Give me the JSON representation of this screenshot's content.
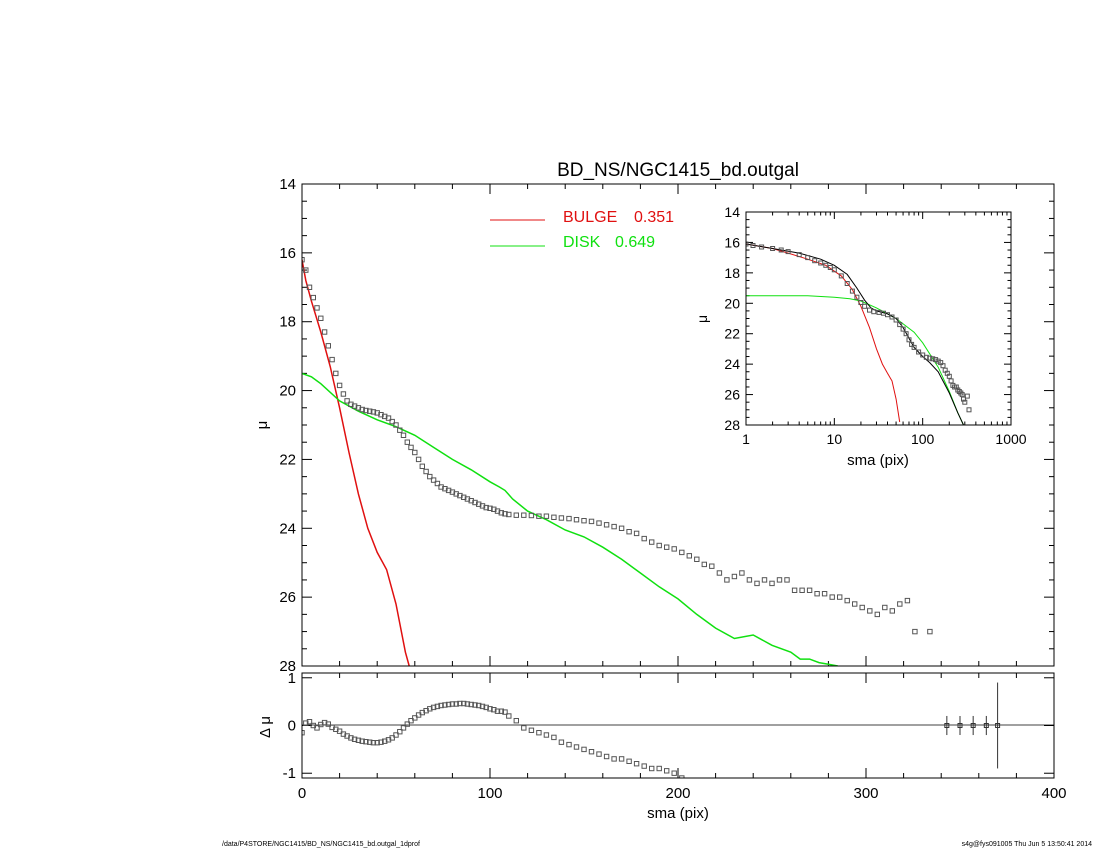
{
  "title": "BD_NS/NGC1415_bd.outgal",
  "footer": {
    "left": "/data/P4STORE/NGC1415/BD_NS/NGC1415_bd.outgal_1dprof",
    "right": "s4g@fys091005  Thu Jun  5 13:50:41 2014"
  },
  "colors": {
    "bulge": "#e01010",
    "disk": "#10e010",
    "data": "#555555",
    "model": "#000000"
  },
  "chart_data": [
    {
      "id": "main",
      "type": "scatter",
      "xlim": [
        0,
        400
      ],
      "ylim": [
        28,
        14
      ],
      "xticks": [
        "0",
        "100",
        "200",
        "300",
        "400"
      ],
      "yticks": [
        "14",
        "16",
        "18",
        "20",
        "22",
        "24",
        "26",
        "28"
      ],
      "xlabel": "",
      "ylabel": "μ",
      "legend": [
        {
          "label": "BULGE",
          "value": "0.351",
          "color": "#e01010"
        },
        {
          "label": "DISK",
          "value": "0.649",
          "color": "#10e010"
        }
      ],
      "series": [
        {
          "name": "BULGE",
          "kind": "line",
          "x": [
            0,
            2,
            5,
            10,
            15,
            20,
            25,
            30,
            35,
            40,
            45,
            50,
            55,
            57
          ],
          "y": [
            16.2,
            16.8,
            17.4,
            18.3,
            19.3,
            20.5,
            21.8,
            23.0,
            24.0,
            24.7,
            25.2,
            26.2,
            27.6,
            28.0
          ]
        },
        {
          "name": "DISK",
          "kind": "line",
          "x": [
            0,
            5,
            10,
            20,
            30,
            40,
            50,
            60,
            70,
            80,
            90,
            100,
            105,
            108,
            112,
            120,
            130,
            140,
            150,
            160,
            170,
            180,
            190,
            200,
            210,
            220,
            230,
            240,
            250,
            260,
            265,
            270,
            275,
            280,
            285
          ],
          "y": [
            19.5,
            19.6,
            19.8,
            20.3,
            20.6,
            20.85,
            21.05,
            21.3,
            21.65,
            22.0,
            22.3,
            22.65,
            22.8,
            22.9,
            23.15,
            23.5,
            23.75,
            24.05,
            24.25,
            24.55,
            24.9,
            25.3,
            25.7,
            26.05,
            26.5,
            26.9,
            27.2,
            27.1,
            27.4,
            27.6,
            27.8,
            27.8,
            27.9,
            27.95,
            28.0
          ]
        },
        {
          "name": "data",
          "kind": "points",
          "x": [
            0,
            2,
            4,
            6,
            8,
            10,
            12,
            14,
            16,
            18,
            20,
            22,
            24,
            26,
            28,
            30,
            32,
            34,
            36,
            38,
            40,
            42,
            44,
            46,
            48,
            50,
            52,
            54,
            56,
            58,
            60,
            62,
            64,
            66,
            68,
            70,
            72,
            74,
            76,
            78,
            80,
            82,
            84,
            86,
            88,
            90,
            92,
            94,
            96,
            98,
            100,
            102,
            104,
            106,
            108,
            110,
            114,
            118,
            122,
            126,
            130,
            134,
            138,
            142,
            146,
            150,
            154,
            158,
            162,
            166,
            170,
            174,
            178,
            182,
            186,
            190,
            194,
            198,
            202,
            206,
            210,
            214,
            218,
            222,
            226,
            230,
            234,
            238,
            242,
            246,
            250,
            254,
            258,
            262,
            266,
            270,
            274,
            278,
            282,
            286,
            290,
            294,
            298,
            302,
            306,
            310,
            314,
            318,
            322,
            326,
            334
          ],
          "y": [
            16.2,
            16.5,
            17.0,
            17.3,
            17.6,
            17.9,
            18.3,
            18.7,
            19.1,
            19.5,
            19.85,
            20.1,
            20.3,
            20.4,
            20.45,
            20.5,
            20.55,
            20.58,
            20.6,
            20.62,
            20.65,
            20.7,
            20.75,
            20.8,
            20.9,
            21.0,
            21.15,
            21.3,
            21.5,
            21.65,
            21.8,
            22.0,
            22.2,
            22.35,
            22.5,
            22.6,
            22.7,
            22.8,
            22.85,
            22.9,
            22.95,
            23.0,
            23.05,
            23.1,
            23.15,
            23.2,
            23.25,
            23.3,
            23.35,
            23.4,
            23.42,
            23.45,
            23.5,
            23.55,
            23.58,
            23.6,
            23.62,
            23.62,
            23.63,
            23.65,
            23.65,
            23.68,
            23.7,
            23.72,
            23.75,
            23.78,
            23.8,
            23.85,
            23.9,
            23.95,
            24.0,
            24.1,
            24.15,
            24.3,
            24.4,
            24.5,
            24.55,
            24.6,
            24.7,
            24.8,
            24.9,
            25.05,
            25.1,
            25.3,
            25.5,
            25.4,
            25.3,
            25.5,
            25.6,
            25.5,
            25.6,
            25.5,
            25.5,
            25.8,
            25.8,
            25.8,
            25.9,
            25.9,
            26.0,
            26.0,
            26.1,
            26.2,
            26.3,
            26.4,
            26.5,
            26.3,
            26.4,
            26.2,
            26.1,
            27.0,
            27.0
          ]
        }
      ]
    },
    {
      "id": "residual",
      "type": "scatter",
      "xlim": [
        0,
        400
      ],
      "ylim": [
        -1.1,
        1.1
      ],
      "xticks": [
        "0",
        "100",
        "200",
        "300",
        "400"
      ],
      "yticks": [
        "-1",
        "0",
        "1"
      ],
      "xlabel": "sma (pix)",
      "ylabel": "Δ μ",
      "series": [
        {
          "name": "residual",
          "kind": "points",
          "x": [
            0,
            2,
            4,
            6,
            8,
            10,
            12,
            14,
            16,
            18,
            20,
            22,
            24,
            26,
            28,
            30,
            32,
            34,
            36,
            38,
            40,
            42,
            44,
            46,
            48,
            50,
            52,
            54,
            56,
            58,
            60,
            62,
            64,
            66,
            68,
            70,
            72,
            74,
            76,
            78,
            80,
            82,
            84,
            86,
            88,
            90,
            92,
            94,
            96,
            98,
            100,
            102,
            104,
            106,
            108,
            110,
            114,
            118,
            122,
            126,
            130,
            134,
            138,
            142,
            146,
            150,
            154,
            158,
            162,
            166,
            170,
            174,
            178,
            182,
            186,
            190,
            194,
            198,
            202
          ],
          "y": [
            -0.15,
            0.05,
            0.08,
            0.0,
            -0.05,
            0.02,
            0.06,
            0.03,
            -0.04,
            -0.08,
            -0.12,
            -0.18,
            -0.22,
            -0.26,
            -0.29,
            -0.31,
            -0.33,
            -0.34,
            -0.35,
            -0.36,
            -0.36,
            -0.35,
            -0.33,
            -0.3,
            -0.26,
            -0.2,
            -0.13,
            -0.05,
            0.03,
            0.1,
            0.16,
            0.22,
            0.27,
            0.31,
            0.35,
            0.38,
            0.4,
            0.42,
            0.43,
            0.44,
            0.45,
            0.45,
            0.46,
            0.46,
            0.45,
            0.44,
            0.43,
            0.42,
            0.4,
            0.38,
            0.35,
            0.33,
            0.3,
            0.3,
            0.28,
            0.2,
            0.1,
            -0.05,
            -0.1,
            -0.15,
            -0.2,
            -0.25,
            -0.35,
            -0.4,
            -0.45,
            -0.5,
            -0.55,
            -0.6,
            -0.65,
            -0.7,
            -0.7,
            -0.75,
            -0.8,
            -0.85,
            -0.9,
            -0.9,
            -0.95,
            -1.0,
            -1.1
          ]
        },
        {
          "name": "errorbars",
          "kind": "errorbar",
          "x": [
            343,
            350,
            357,
            364,
            370
          ],
          "y": [
            0,
            0,
            0,
            0,
            0
          ],
          "err": [
            0.2,
            0.2,
            0.2,
            0.2,
            0.9
          ]
        }
      ]
    },
    {
      "id": "inset",
      "type": "scatter",
      "xscale": "log",
      "xlim": [
        1,
        1000
      ],
      "ylim": [
        28,
        14
      ],
      "xticks": [
        "1",
        "10",
        "100",
        "1000"
      ],
      "yticks": [
        "14",
        "16",
        "18",
        "20",
        "22",
        "24",
        "26",
        "28"
      ],
      "xlabel": "sma (pix)",
      "ylabel": "μ",
      "series": [
        {
          "name": "BULGE",
          "kind": "line",
          "x": [
            1,
            2,
            3,
            5,
            8,
            12,
            16,
            20,
            25,
            30,
            35,
            40,
            45,
            50,
            55
          ],
          "y": [
            16.1,
            16.4,
            16.7,
            17.1,
            17.5,
            18.2,
            19.1,
            20.2,
            21.6,
            23.0,
            24.0,
            24.6,
            25.1,
            26.3,
            27.8
          ]
        },
        {
          "name": "DISK",
          "kind": "line",
          "x": [
            1,
            3,
            5,
            10,
            15,
            20,
            30,
            50,
            80,
            100,
            150,
            200,
            250,
            290
          ],
          "y": [
            19.5,
            19.5,
            19.5,
            19.6,
            19.7,
            19.85,
            20.3,
            21.0,
            21.9,
            22.6,
            24.2,
            25.8,
            27.2,
            28.0
          ]
        },
        {
          "name": "model",
          "kind": "line",
          "x": [
            1,
            2,
            4,
            7,
            10,
            14,
            18,
            22,
            26,
            30,
            40,
            50,
            60,
            70,
            80,
            100,
            120,
            150,
            200,
            250,
            290
          ],
          "y": [
            16.1,
            16.4,
            16.7,
            17.1,
            17.5,
            18.1,
            19.0,
            19.8,
            20.3,
            20.5,
            20.7,
            21.0,
            21.6,
            22.3,
            22.9,
            23.5,
            23.9,
            24.5,
            25.9,
            27.2,
            28.0
          ]
        },
        {
          "name": "data",
          "kind": "points",
          "x": [
            1,
            1.2,
            1.5,
            2,
            2.5,
            3,
            4,
            5,
            6,
            7,
            8,
            9,
            10,
            12,
            14,
            16,
            18,
            20,
            22,
            25,
            28,
            32,
            36,
            40,
            45,
            50,
            55,
            60,
            65,
            70,
            75,
            80,
            90,
            100,
            110,
            120,
            130,
            140,
            150,
            160,
            170,
            180,
            190,
            200,
            210,
            220,
            230,
            240,
            250,
            260,
            270,
            280,
            290,
            300,
            320,
            335
          ],
          "y": [
            16.1,
            16.2,
            16.3,
            16.4,
            16.5,
            16.6,
            16.8,
            17.0,
            17.2,
            17.35,
            17.5,
            17.65,
            17.8,
            18.2,
            18.7,
            19.2,
            19.6,
            19.95,
            20.2,
            20.45,
            20.55,
            20.6,
            20.65,
            20.75,
            20.9,
            21.1,
            21.4,
            21.7,
            22.0,
            22.4,
            22.7,
            22.9,
            23.2,
            23.4,
            23.55,
            23.6,
            23.65,
            23.7,
            23.8,
            23.9,
            24.1,
            24.4,
            24.6,
            24.8,
            25.1,
            25.4,
            25.5,
            25.5,
            25.7,
            25.8,
            25.9,
            26.0,
            26.3,
            26.5,
            26.1,
            27.0
          ]
        }
      ]
    }
  ]
}
